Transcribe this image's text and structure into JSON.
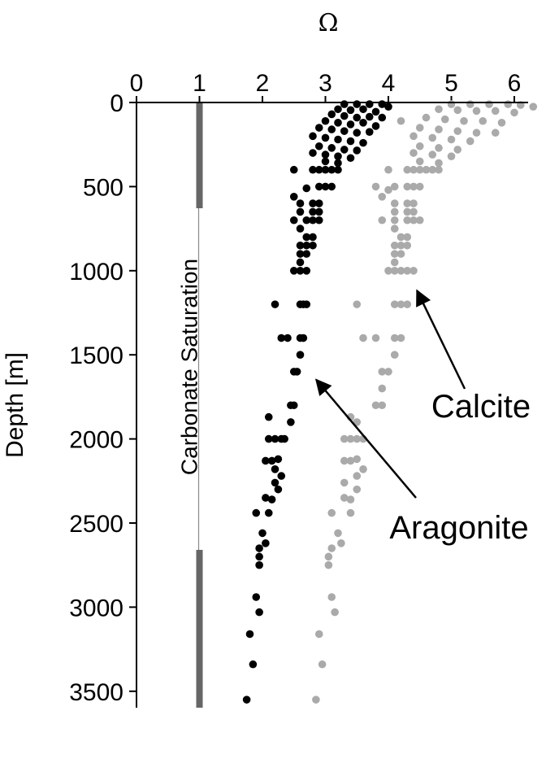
{
  "chart_data": {
    "type": "scatter",
    "title": "",
    "xlabel": "Ω",
    "ylabel": "Depth [m]",
    "xlim": [
      0,
      6.5
    ],
    "ylim": [
      0,
      3600
    ],
    "y_inverted": true,
    "x_axis_position": "top",
    "x_ticks": [
      "0",
      "1",
      "2",
      "3",
      "4",
      "5",
      "6"
    ],
    "y_ticks": [
      "0",
      "500",
      "1000",
      "1500",
      "2000",
      "2500",
      "3000",
      "3500"
    ],
    "grid": false,
    "legend": "none",
    "reference_line": {
      "label": "Carbonate Saturation",
      "x": 1,
      "color": "#666666"
    },
    "annotations": [
      {
        "text": "Calcite",
        "points_to": {
          "x": 4.3,
          "y": 1070
        }
      },
      {
        "text": "Aragonite",
        "points_to": {
          "x": 2.7,
          "y": 1600
        }
      }
    ],
    "series": [
      {
        "color": "#000000",
        "points": [
          [
            3.3,
            10
          ],
          [
            3.5,
            10
          ],
          [
            3.7,
            10
          ],
          [
            3.9,
            10
          ],
          [
            4.0,
            25
          ],
          [
            3.2,
            40
          ],
          [
            3.4,
            45
          ],
          [
            3.6,
            40
          ],
          [
            3.8,
            55
          ],
          [
            3.1,
            70
          ],
          [
            3.3,
            80
          ],
          [
            3.5,
            90
          ],
          [
            3.7,
            85
          ],
          [
            3.9,
            90
          ],
          [
            3.0,
            110
          ],
          [
            3.2,
            120
          ],
          [
            3.4,
            130
          ],
          [
            3.6,
            120
          ],
          [
            3.8,
            140
          ],
          [
            2.9,
            150
          ],
          [
            3.1,
            160
          ],
          [
            3.3,
            170
          ],
          [
            3.5,
            180
          ],
          [
            3.7,
            175
          ],
          [
            2.8,
            200
          ],
          [
            3.0,
            210
          ],
          [
            3.2,
            220
          ],
          [
            3.4,
            230
          ],
          [
            3.6,
            240
          ],
          [
            2.9,
            260
          ],
          [
            3.1,
            270
          ],
          [
            3.3,
            280
          ],
          [
            3.5,
            285
          ],
          [
            2.8,
            300
          ],
          [
            3.0,
            310
          ],
          [
            3.2,
            320
          ],
          [
            3.4,
            330
          ],
          [
            3.0,
            350
          ],
          [
            3.2,
            360
          ],
          [
            2.5,
            400
          ],
          [
            2.8,
            400
          ],
          [
            2.9,
            400
          ],
          [
            3.0,
            400
          ],
          [
            3.1,
            400
          ],
          [
            3.2,
            400
          ],
          [
            2.9,
            500
          ],
          [
            3.0,
            500
          ],
          [
            3.1,
            500
          ],
          [
            2.7,
            510
          ],
          [
            2.5,
            560
          ],
          [
            2.6,
            600
          ],
          [
            2.8,
            600
          ],
          [
            2.9,
            600
          ],
          [
            2.6,
            650
          ],
          [
            2.8,
            650
          ],
          [
            2.9,
            650
          ],
          [
            2.5,
            700
          ],
          [
            2.7,
            700
          ],
          [
            2.8,
            700
          ],
          [
            2.9,
            700
          ],
          [
            2.6,
            750
          ],
          [
            2.7,
            800
          ],
          [
            2.8,
            800
          ],
          [
            2.6,
            850
          ],
          [
            2.7,
            850
          ],
          [
            2.8,
            850
          ],
          [
            2.6,
            900
          ],
          [
            2.7,
            900
          ],
          [
            2.6,
            950
          ],
          [
            2.5,
            1000
          ],
          [
            2.6,
            1000
          ],
          [
            2.7,
            1000
          ],
          [
            2.2,
            1200
          ],
          [
            2.6,
            1200
          ],
          [
            2.65,
            1200
          ],
          [
            2.7,
            1200
          ],
          [
            2.3,
            1400
          ],
          [
            2.4,
            1400
          ],
          [
            2.6,
            1400
          ],
          [
            2.65,
            1400
          ],
          [
            2.6,
            1500
          ],
          [
            2.5,
            1600
          ],
          [
            2.55,
            1600
          ],
          [
            2.45,
            1800
          ],
          [
            2.5,
            1800
          ],
          [
            2.45,
            1900
          ],
          [
            2.1,
            1870
          ],
          [
            2.1,
            2000
          ],
          [
            2.2,
            2000
          ],
          [
            2.3,
            2000
          ],
          [
            2.35,
            2000
          ],
          [
            2.05,
            2130
          ],
          [
            2.15,
            2130
          ],
          [
            2.25,
            2120
          ],
          [
            2.2,
            2180
          ],
          [
            2.3,
            2220
          ],
          [
            2.2,
            2260
          ],
          [
            2.25,
            2300
          ],
          [
            2.05,
            2350
          ],
          [
            2.15,
            2360
          ],
          [
            1.9,
            2440
          ],
          [
            2.1,
            2440
          ],
          [
            2.0,
            2560
          ],
          [
            2.05,
            2620
          ],
          [
            1.95,
            2650
          ],
          [
            1.95,
            2700
          ],
          [
            1.95,
            2750
          ],
          [
            1.9,
            2940
          ],
          [
            1.95,
            3030
          ],
          [
            1.8,
            3160
          ],
          [
            1.85,
            3340
          ],
          [
            1.75,
            3550
          ]
        ]
      },
      {
        "color": "#aaaaaa",
        "points": [
          [
            5.0,
            10
          ],
          [
            5.3,
            10
          ],
          [
            5.6,
            10
          ],
          [
            5.9,
            10
          ],
          [
            6.1,
            15
          ],
          [
            6.3,
            25
          ],
          [
            4.8,
            40
          ],
          [
            5.1,
            45
          ],
          [
            5.4,
            50
          ],
          [
            5.7,
            50
          ],
          [
            6.0,
            60
          ],
          [
            4.6,
            90
          ],
          [
            4.9,
            100
          ],
          [
            5.2,
            110
          ],
          [
            5.5,
            110
          ],
          [
            5.8,
            120
          ],
          [
            4.2,
            110
          ],
          [
            4.5,
            150
          ],
          [
            4.8,
            160
          ],
          [
            5.1,
            170
          ],
          [
            5.4,
            180
          ],
          [
            5.7,
            180
          ],
          [
            4.4,
            200
          ],
          [
            4.7,
            210
          ],
          [
            5.0,
            220
          ],
          [
            5.3,
            230
          ],
          [
            4.5,
            260
          ],
          [
            4.8,
            270
          ],
          [
            5.1,
            280
          ],
          [
            4.4,
            300
          ],
          [
            4.7,
            310
          ],
          [
            5.0,
            320
          ],
          [
            4.5,
            350
          ],
          [
            4.8,
            360
          ],
          [
            4.0,
            400
          ],
          [
            4.3,
            400
          ],
          [
            4.4,
            400
          ],
          [
            4.5,
            400
          ],
          [
            4.6,
            400
          ],
          [
            4.7,
            400
          ],
          [
            4.8,
            400
          ],
          [
            3.8,
            500
          ],
          [
            4.1,
            500
          ],
          [
            4.3,
            500
          ],
          [
            4.4,
            500
          ],
          [
            4.5,
            500
          ],
          [
            4.0,
            520
          ],
          [
            3.9,
            560
          ],
          [
            4.1,
            600
          ],
          [
            4.3,
            600
          ],
          [
            4.4,
            600
          ],
          [
            4.1,
            650
          ],
          [
            4.3,
            650
          ],
          [
            4.4,
            650
          ],
          [
            3.9,
            700
          ],
          [
            4.1,
            700
          ],
          [
            4.3,
            700
          ],
          [
            4.4,
            700
          ],
          [
            4.5,
            700
          ],
          [
            4.1,
            750
          ],
          [
            4.2,
            800
          ],
          [
            4.3,
            800
          ],
          [
            4.1,
            850
          ],
          [
            4.2,
            850
          ],
          [
            4.3,
            850
          ],
          [
            4.1,
            900
          ],
          [
            4.2,
            900
          ],
          [
            4.1,
            950
          ],
          [
            4.0,
            1000
          ],
          [
            4.1,
            1000
          ],
          [
            4.2,
            1000
          ],
          [
            4.3,
            1000
          ],
          [
            4.4,
            1000
          ],
          [
            3.5,
            1200
          ],
          [
            4.1,
            1200
          ],
          [
            4.2,
            1200
          ],
          [
            4.3,
            1200
          ],
          [
            3.6,
            1400
          ],
          [
            3.8,
            1400
          ],
          [
            4.1,
            1400
          ],
          [
            4.2,
            1400
          ],
          [
            4.1,
            1500
          ],
          [
            3.9,
            1600
          ],
          [
            4.0,
            1600
          ],
          [
            3.9,
            1700
          ],
          [
            3.9,
            1800
          ],
          [
            3.8,
            1800
          ],
          [
            3.4,
            1870
          ],
          [
            3.5,
            1900
          ],
          [
            3.3,
            2000
          ],
          [
            3.4,
            2000
          ],
          [
            3.5,
            2000
          ],
          [
            3.6,
            2000
          ],
          [
            3.3,
            2130
          ],
          [
            3.4,
            2130
          ],
          [
            3.5,
            2120
          ],
          [
            3.6,
            2180
          ],
          [
            3.5,
            2220
          ],
          [
            3.3,
            2260
          ],
          [
            3.5,
            2300
          ],
          [
            3.3,
            2350
          ],
          [
            3.4,
            2360
          ],
          [
            3.1,
            2440
          ],
          [
            3.4,
            2440
          ],
          [
            3.2,
            2560
          ],
          [
            3.25,
            2620
          ],
          [
            3.1,
            2650
          ],
          [
            3.05,
            2700
          ],
          [
            3.05,
            2750
          ],
          [
            3.1,
            2940
          ],
          [
            3.15,
            3030
          ],
          [
            2.9,
            3160
          ],
          [
            2.95,
            3340
          ],
          [
            2.85,
            3550
          ]
        ]
      }
    ]
  }
}
